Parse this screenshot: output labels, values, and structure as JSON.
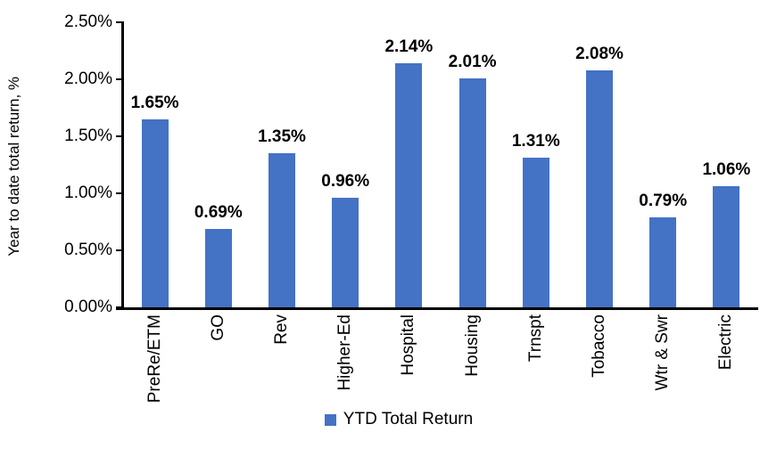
{
  "chart_data": {
    "type": "bar",
    "title": "",
    "ylabel": "Year to date total return, %",
    "xlabel": "",
    "categories": [
      "PreRe/ETM",
      "GO",
      "Rev",
      "Higher-Ed",
      "Hospital",
      "Housing",
      "Trnspt",
      "Tobacco",
      "Wtr & Swr",
      "Electric"
    ],
    "values": [
      1.65,
      0.69,
      1.35,
      0.96,
      2.14,
      2.01,
      1.31,
      2.08,
      0.79,
      1.06
    ],
    "value_labels": [
      "1.65%",
      "0.69%",
      "1.35%",
      "0.96%",
      "2.14%",
      "2.01%",
      "1.31%",
      "2.08%",
      "0.79%",
      "1.06%"
    ],
    "ylim": [
      0,
      2.5
    ],
    "ytick_values": [
      0,
      0.5,
      1.0,
      1.5,
      2.0,
      2.5
    ],
    "ytick_labels": [
      "0.00%",
      "0.50%",
      "1.00%",
      "1.50%",
      "2.00%",
      "2.50%"
    ],
    "grid": false,
    "bar_color": "#4472C4",
    "axis_color": "#000000",
    "legend_position": "bottom",
    "legend": [
      {
        "label": "YTD Total Return",
        "color": "#4472C4"
      }
    ]
  }
}
